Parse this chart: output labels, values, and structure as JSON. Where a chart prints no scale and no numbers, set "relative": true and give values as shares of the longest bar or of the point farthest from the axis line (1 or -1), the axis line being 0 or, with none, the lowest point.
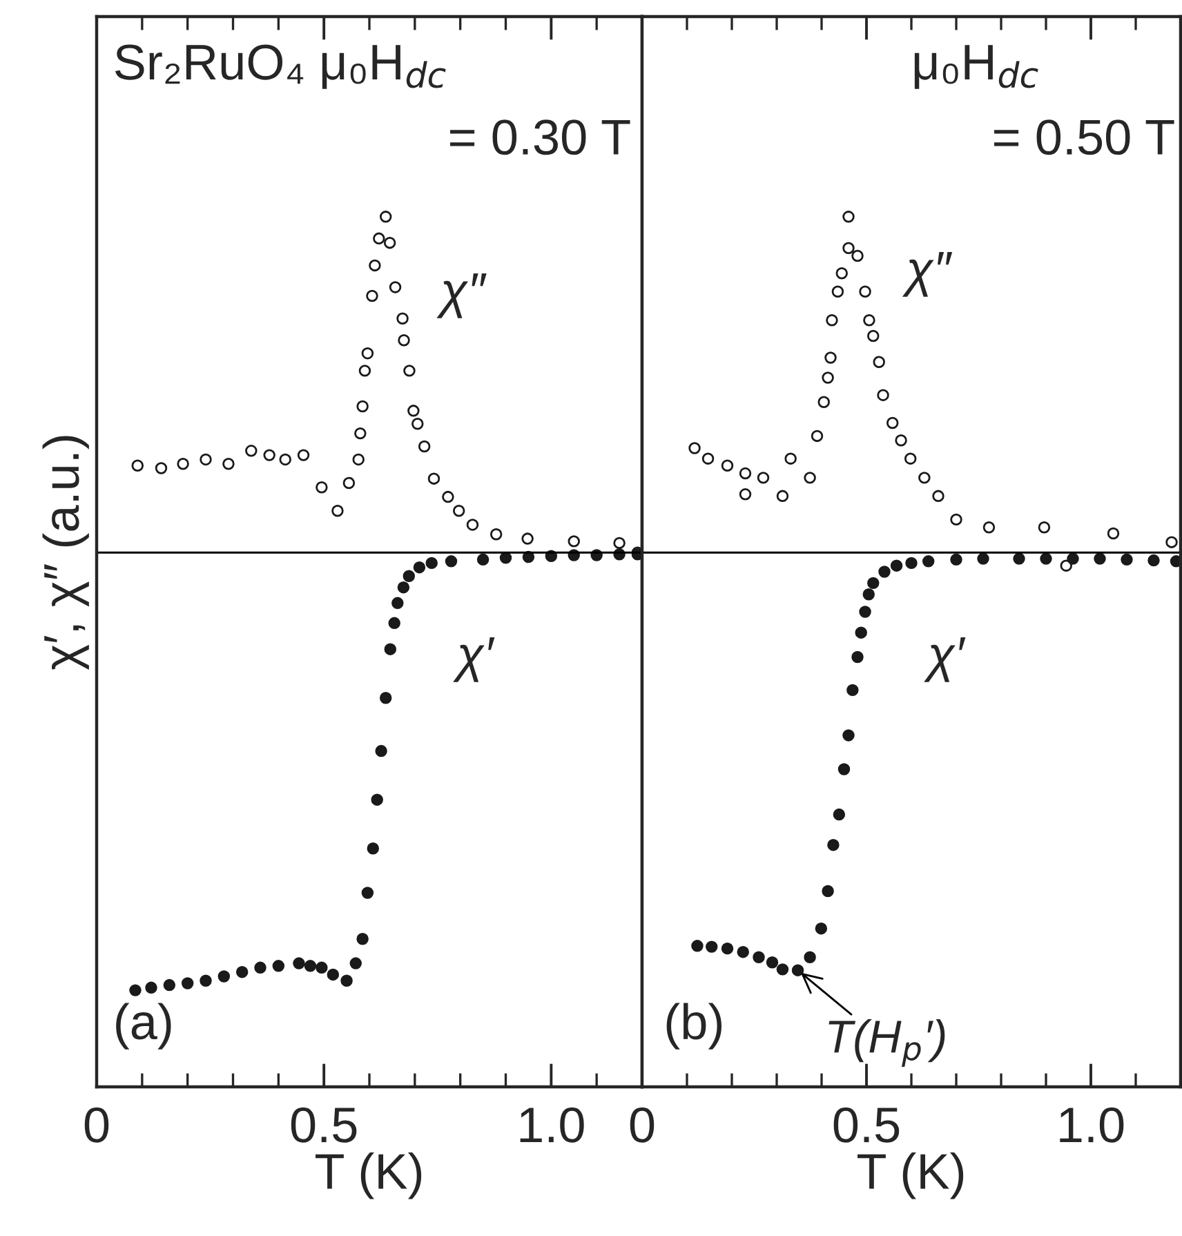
{
  "chart_data": [
    {
      "type": "scatter",
      "relative": true,
      "xlabel": "T (K)",
      "ylabel": "χ′, χ″ (a.u.)",
      "marker": "circle",
      "grid": false,
      "legend": false,
      "tick_labels": "x",
      "xlim": [
        0,
        1.2
      ],
      "xticks": [
        0,
        {
          "value": 0.1,
          "label": null
        },
        {
          "value": 0.2,
          "label": null
        },
        {
          "value": 0.3,
          "label": null
        },
        {
          "value": 0.4,
          "label": null
        },
        0.5,
        {
          "value": 0.6,
          "label": null
        },
        {
          "value": 0.7,
          "label": null
        },
        {
          "value": 0.8,
          "label": null
        },
        {
          "value": 0.9,
          "label": null
        },
        {
          "value": 1.0,
          "label": "1.0"
        },
        {
          "value": 1.1,
          "label": null
        }
      ],
      "ref_lines": [
        {
          "axis": "y",
          "value": 0.614,
          "color": "#000000"
        }
      ],
      "annotations": [
        "Sr₂RuO₄ μ₀H$_{dc}$",
        "= 0.30 T",
        "(a)",
        "χ″",
        "χ′"
      ],
      "series": [
        {
          "color": "#1a1a1a",
          "x": [
            0.085,
            0.12,
            0.16,
            0.2,
            0.24,
            0.28,
            0.32,
            0.36,
            0.4,
            0.445,
            0.47,
            0.495,
            0.52,
            0.55,
            0.57,
            0.585,
            0.596,
            0.608,
            0.617,
            0.626,
            0.636,
            0.646,
            0.655,
            0.662,
            0.675,
            0.687,
            0.71,
            0.737,
            0.78,
            0.85,
            0.9,
            0.95,
            1.0,
            1.05,
            1.1,
            1.15,
            1.19
          ],
          "values": [
            0.111,
            0.114,
            0.117,
            0.119,
            0.122,
            0.127,
            0.132,
            0.137,
            0.139,
            0.142,
            0.139,
            0.137,
            0.129,
            0.122,
            0.142,
            0.17,
            0.223,
            0.274,
            0.33,
            0.386,
            0.447,
            0.503,
            0.533,
            0.556,
            0.574,
            0.587,
            0.597,
            0.602,
            0.604,
            0.606,
            0.608,
            0.609,
            0.61,
            0.611,
            0.611,
            0.612,
            0.612
          ]
        },
        {
          "color": "#1a1a1a",
          "x": [
            0.09,
            0.142,
            0.19,
            0.24,
            0.29,
            0.34,
            0.38,
            0.415,
            0.455,
            0.495,
            0.53,
            0.555,
            0.576,
            0.58,
            0.585,
            0.59,
            0.596,
            0.606,
            0.612,
            0.621,
            0.636,
            0.645,
            0.657,
            0.673,
            0.676,
            0.688,
            0.697,
            0.706,
            0.721,
            0.742,
            0.773,
            0.797,
            0.827,
            0.879,
            0.948,
            1.05,
            1.15,
            1.19
          ],
          "values": [
            0.714,
            0.711,
            0.716,
            0.721,
            0.716,
            0.731,
            0.726,
            0.721,
            0.726,
            0.689,
            0.662,
            0.694,
            0.721,
            0.751,
            0.782,
            0.823,
            0.843,
            0.909,
            0.944,
            0.975,
            1.0,
            0.97,
            0.919,
            0.883,
            0.858,
            0.823,
            0.777,
            0.762,
            0.736,
            0.699,
            0.678,
            0.662,
            0.646,
            0.635,
            0.63,
            0.627,
            0.625,
            0.614
          ]
        }
      ]
    },
    {
      "type": "scatter",
      "relative": true,
      "xlabel": "T (K)",
      "marker": "circle",
      "grid": false,
      "legend": false,
      "tick_labels": "x",
      "xlim": [
        0,
        1.2
      ],
      "xticks": [
        {
          "value": 0,
          "label": "0"
        },
        {
          "value": 0.1,
          "label": null
        },
        {
          "value": 0.2,
          "label": null
        },
        {
          "value": 0.3,
          "label": null
        },
        {
          "value": 0.4,
          "label": null
        },
        0.5,
        {
          "value": 0.6,
          "label": null
        },
        {
          "value": 0.7,
          "label": null
        },
        {
          "value": 0.8,
          "label": null
        },
        {
          "value": 0.9,
          "label": null
        },
        {
          "value": 1.0,
          "label": "1.0"
        },
        {
          "value": 1.1,
          "label": null
        }
      ],
      "ref_lines": [
        {
          "axis": "y",
          "value": 0.614,
          "color": "#000000"
        }
      ],
      "annotations": [
        "μ₀H$_{dc}$",
        "= 0.50 T",
        "(b)",
        "χ″",
        "χ′",
        {
          "text": "T(H$_{p}$′)",
          "x": 0.347,
          "y": 0.134
        }
      ],
      "series": [
        {
          "color": "#1a1a1a",
          "x": [
            0.123,
            0.155,
            0.19,
            0.225,
            0.26,
            0.29,
            0.313,
            0.347,
            0.374,
            0.399,
            0.414,
            0.426,
            0.439,
            0.45,
            0.46,
            0.469,
            0.48,
            0.488,
            0.497,
            0.505,
            0.515,
            0.54,
            0.567,
            0.6,
            0.638,
            0.7,
            0.76,
            0.84,
            0.9,
            0.96,
            1.02,
            1.08,
            1.14,
            1.19
          ],
          "values": [
            0.162,
            0.161,
            0.159,
            0.155,
            0.149,
            0.143,
            0.135,
            0.134,
            0.149,
            0.182,
            0.225,
            0.278,
            0.313,
            0.365,
            0.404,
            0.456,
            0.494,
            0.522,
            0.546,
            0.566,
            0.579,
            0.592,
            0.599,
            0.602,
            0.604,
            0.606,
            0.607,
            0.607,
            0.607,
            0.607,
            0.607,
            0.606,
            0.605,
            0.604
          ]
        },
        {
          "color": "#1a1a1a",
          "x": [
            0.117,
            0.147,
            0.19,
            0.23,
            0.23,
            0.27,
            0.313,
            0.331,
            0.374,
            0.39,
            0.405,
            0.414,
            0.42,
            0.423,
            0.436,
            0.445,
            0.46,
            0.46,
            0.48,
            0.497,
            0.506,
            0.515,
            0.528,
            0.537,
            0.558,
            0.577,
            0.598,
            0.629,
            0.66,
            0.7,
            0.773,
            0.896,
            0.945,
            1.05,
            1.18
          ],
          "values": [
            0.734,
            0.722,
            0.714,
            0.705,
            0.681,
            0.7,
            0.679,
            0.722,
            0.7,
            0.748,
            0.787,
            0.815,
            0.838,
            0.881,
            0.914,
            0.935,
            0.964,
            1.0,
            0.955,
            0.914,
            0.881,
            0.863,
            0.833,
            0.795,
            0.763,
            0.743,
            0.722,
            0.7,
            0.679,
            0.652,
            0.643,
            0.643,
            0.599,
            0.636,
            0.626
          ]
        }
      ]
    }
  ]
}
